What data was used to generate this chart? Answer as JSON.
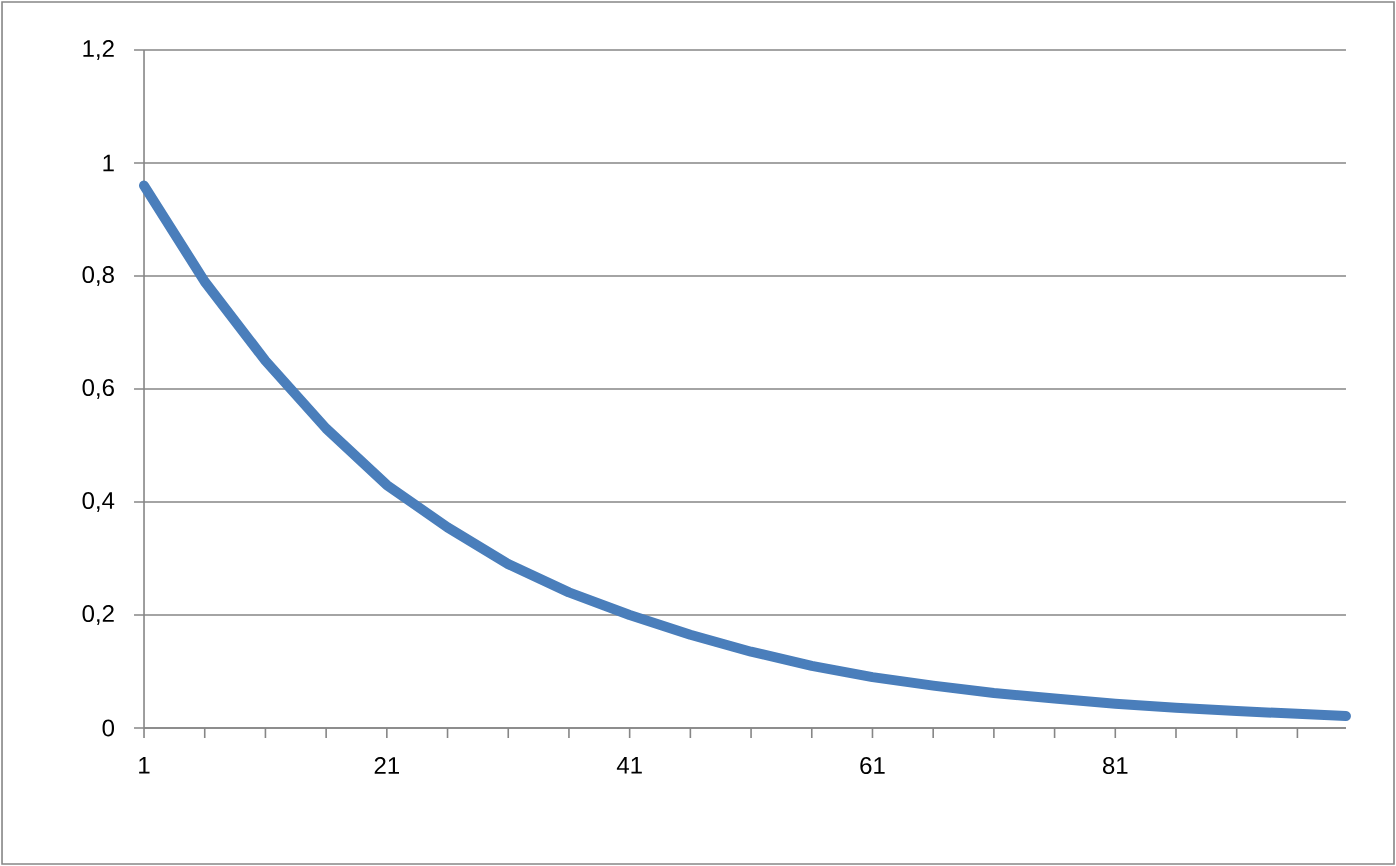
{
  "chart_data": {
    "type": "line",
    "x": [
      1,
      6,
      11,
      16,
      21,
      26,
      31,
      36,
      41,
      46,
      51,
      56,
      61,
      66,
      71,
      76,
      81,
      86,
      91,
      96,
      100
    ],
    "series": [
      {
        "color": "#4a7ebb",
        "values": [
          0.96,
          0.79,
          0.65,
          0.53,
          0.43,
          0.355,
          0.29,
          0.24,
          0.2,
          0.165,
          0.135,
          0.11,
          0.09,
          0.075,
          0.062,
          0.052,
          0.043,
          0.036,
          0.03,
          0.025,
          0.021
        ]
      }
    ],
    "xlim": [
      1,
      100
    ],
    "xticks": [
      1,
      {
        "value": 6,
        "label": null
      },
      {
        "value": 11,
        "label": null
      },
      {
        "value": 16,
        "label": null
      },
      21,
      {
        "value": 26,
        "label": null
      },
      {
        "value": 31,
        "label": null
      },
      {
        "value": 36,
        "label": null
      },
      41,
      {
        "value": 46,
        "label": null
      },
      {
        "value": 51,
        "label": null
      },
      {
        "value": 56,
        "label": null
      },
      61,
      {
        "value": 66,
        "label": null
      },
      {
        "value": 71,
        "label": null
      },
      {
        "value": 76,
        "label": null
      },
      81,
      {
        "value": 86,
        "label": null
      },
      {
        "value": 91,
        "label": null
      },
      {
        "value": 96,
        "label": null
      }
    ],
    "ylim": [
      0,
      1.2
    ],
    "yticks": [
      0,
      {
        "value": 0.2,
        "label": "0,2"
      },
      {
        "value": 0.4,
        "label": "0,4"
      },
      {
        "value": 0.6,
        "label": "0,6"
      },
      {
        "value": 0.8,
        "label": "0,8"
      },
      1,
      {
        "value": 1.2,
        "label": "1,2"
      }
    ],
    "grid": "y",
    "marker": "none",
    "line_style": "solid"
  }
}
